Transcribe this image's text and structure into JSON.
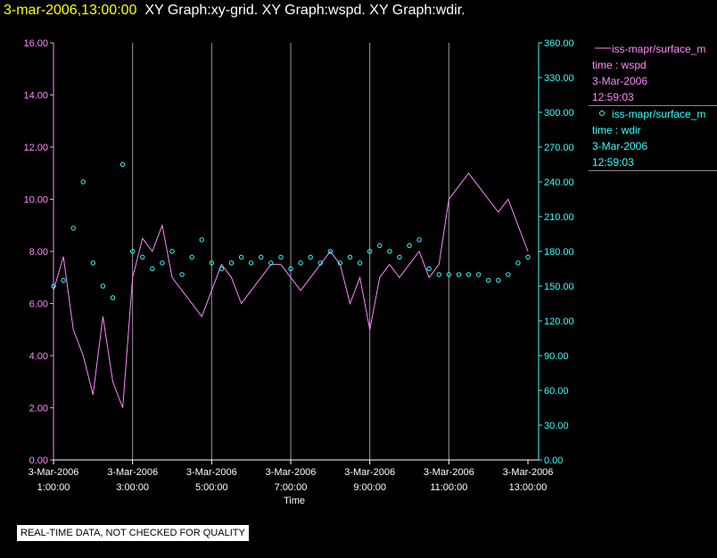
{
  "header": {
    "timestamp": "3-mar-2006,13:00:00",
    "title": "XY Graph:xy-grid.  XY Graph:wspd.  XY Graph:wdir."
  },
  "legend": {
    "entries": [
      {
        "name": "iss-mapr/surface_m",
        "field": "time : wspd",
        "date": "3-Mar-2006",
        "time": "12:59:03",
        "color": "#ff88ff",
        "marker": "line"
      },
      {
        "name": "iss-mapr/surface_m",
        "field": "time : wdir",
        "date": "3-Mar-2006",
        "time": "12:59:03",
        "color": "#33ffff",
        "marker": "circle"
      }
    ]
  },
  "notice": "REAL-TIME DATA, NOT CHECKED FOR QUALITY",
  "chart_data": {
    "type": "line",
    "xlabel": "Time",
    "xlim": [
      0,
      12
    ],
    "xticks": [
      {
        "x": 0,
        "date": "3-Mar-2006",
        "time": "1:00:00"
      },
      {
        "x": 2,
        "date": "3-Mar-2006",
        "time": "3:00:00"
      },
      {
        "x": 4,
        "date": "3-Mar-2006",
        "time": "5:00:00"
      },
      {
        "x": 6,
        "date": "3-Mar-2006",
        "time": "7:00:00"
      },
      {
        "x": 8,
        "date": "3-Mar-2006",
        "time": "9:00:00"
      },
      {
        "x": 10,
        "date": "3-Mar-2006",
        "time": "11:00:00"
      },
      {
        "x": 12,
        "date": "3-Mar-2006",
        "time": "13:00:00"
      }
    ],
    "y_left": {
      "range": [
        0,
        16
      ],
      "ticks": [
        "0.00",
        "2.00",
        "4.00",
        "6.00",
        "8.00",
        "10.00",
        "12.00",
        "14.00",
        "16.00"
      ],
      "color": "#ff88ff"
    },
    "y_right": {
      "range": [
        0,
        360
      ],
      "ticks": [
        "0.00",
        "30.00",
        "60.00",
        "90.00",
        "120.00",
        "150.00",
        "180.00",
        "210.00",
        "240.00",
        "270.00",
        "300.00",
        "330.00",
        "360.00"
      ],
      "color": "#33ffff"
    },
    "grid": "vertical",
    "series": [
      {
        "key": "wspd",
        "axis": "left",
        "style": "line",
        "color": "#ff88ff",
        "x": [
          0,
          0.25,
          0.5,
          0.75,
          1,
          1.25,
          1.5,
          1.75,
          2,
          2.25,
          2.5,
          2.75,
          3,
          3.25,
          3.5,
          3.75,
          4,
          4.25,
          4.5,
          4.75,
          5,
          5.25,
          5.5,
          5.75,
          6,
          6.25,
          6.5,
          6.75,
          7,
          7.25,
          7.5,
          7.75,
          8,
          8.25,
          8.5,
          8.75,
          9,
          9.25,
          9.5,
          9.75,
          10,
          10.25,
          10.5,
          10.75,
          11,
          11.25,
          11.5,
          11.75,
          12
        ],
        "values": [
          6.5,
          7.8,
          5.0,
          4.0,
          2.5,
          5.5,
          3.0,
          2.0,
          7.0,
          8.5,
          8.0,
          9.0,
          7.0,
          6.5,
          6.0,
          5.5,
          6.5,
          7.5,
          7.0,
          6.0,
          6.5,
          7.0,
          7.5,
          7.5,
          7.0,
          6.5,
          7.0,
          7.5,
          8.0,
          7.5,
          6.0,
          7.0,
          5.0,
          7.0,
          7.5,
          7.0,
          7.5,
          8.0,
          7.0,
          7.5,
          10.0,
          10.5,
          11.0,
          10.5,
          10.0,
          9.5,
          10.0,
          9.0,
          8.0
        ]
      },
      {
        "key": "wdir",
        "axis": "right",
        "style": "scatter",
        "color": "#33ffff",
        "x": [
          0,
          0.25,
          0.5,
          0.75,
          1,
          1.25,
          1.5,
          1.75,
          2,
          2.25,
          2.5,
          2.75,
          3,
          3.25,
          3.5,
          3.75,
          4,
          4.25,
          4.5,
          4.75,
          5,
          5.25,
          5.5,
          5.75,
          6,
          6.25,
          6.5,
          6.75,
          7,
          7.25,
          7.5,
          7.75,
          8,
          8.25,
          8.5,
          8.75,
          9,
          9.25,
          9.5,
          9.75,
          10,
          10.25,
          10.5,
          10.75,
          11,
          11.25,
          11.5,
          11.75,
          12
        ],
        "values": [
          150,
          155,
          200,
          240,
          170,
          150,
          140,
          255,
          180,
          175,
          165,
          170,
          180,
          160,
          175,
          190,
          170,
          165,
          170,
          175,
          170,
          175,
          170,
          175,
          165,
          170,
          175,
          170,
          180,
          170,
          175,
          170,
          180,
          185,
          180,
          175,
          185,
          190,
          165,
          160,
          160,
          160,
          160,
          160,
          155,
          155,
          160,
          170,
          175
        ]
      }
    ]
  }
}
